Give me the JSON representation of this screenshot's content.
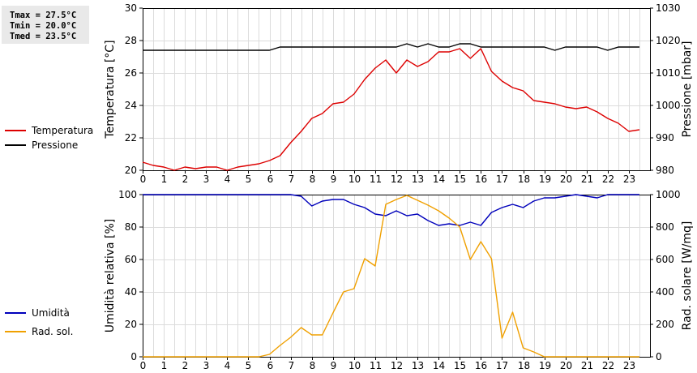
{
  "stats": {
    "tmax": "Tmax = 27.5°C",
    "tmin": "Tmin = 20.0°C",
    "tmed": "Tmed = 23.5°C"
  },
  "legend_top": [
    {
      "label": "Temperatura",
      "color": "#dd0000"
    },
    {
      "label": "Pressione",
      "color": "#000000"
    }
  ],
  "legend_bottom": [
    {
      "label": "Umidità",
      "color": "#0000bb"
    },
    {
      "label": "Rad. sol.",
      "color": "#f0a000"
    }
  ],
  "chart_data": [
    {
      "type": "line",
      "x_ticks": [
        "0",
        "1",
        "2",
        "3",
        "4",
        "5",
        "6",
        "7",
        "8",
        "9",
        "10",
        "11",
        "12",
        "13",
        "14",
        "15",
        "16",
        "17",
        "18",
        "19",
        "20",
        "21",
        "22",
        "23"
      ],
      "xlim": [
        0,
        24
      ],
      "grid": true,
      "y_left": {
        "label": "Temperatura [°C]",
        "ylim": [
          20,
          30
        ],
        "ticks": [
          "20",
          "22",
          "24",
          "26",
          "28",
          "30"
        ]
      },
      "y_right": {
        "label": "Pressione [mbar]",
        "ylim": [
          980,
          1030
        ],
        "ticks": [
          "980",
          "990",
          "1000",
          "1010",
          "1020",
          "1030"
        ]
      },
      "series": [
        {
          "name": "Temperatura",
          "axis": "left",
          "color": "#dd0000",
          "x": [
            0,
            0.5,
            1,
            1.5,
            2,
            2.5,
            3,
            3.5,
            4,
            4.5,
            5,
            5.5,
            6,
            6.5,
            7,
            7.5,
            8,
            8.5,
            9,
            9.5,
            10,
            10.5,
            11,
            11.5,
            12,
            12.5,
            13,
            13.5,
            14,
            14.5,
            15,
            15.5,
            16,
            16.5,
            17,
            17.5,
            18,
            18.5,
            19,
            19.5,
            20,
            20.5,
            21,
            21.5,
            22,
            22.5,
            23,
            23.5
          ],
          "y": [
            20.5,
            20.3,
            20.2,
            20.0,
            20.2,
            20.1,
            20.2,
            20.2,
            20.0,
            20.2,
            20.3,
            20.4,
            20.6,
            20.9,
            21.7,
            22.4,
            23.2,
            23.5,
            24.1,
            24.2,
            24.7,
            25.6,
            26.3,
            26.8,
            26.0,
            26.8,
            26.4,
            26.7,
            27.3,
            27.3,
            27.5,
            26.9,
            27.5,
            26.1,
            25.5,
            25.1,
            24.9,
            24.3,
            24.2,
            24.1,
            23.9,
            23.8,
            23.9,
            23.6,
            23.2,
            22.9,
            22.4,
            22.5
          ]
        },
        {
          "name": "Pressione",
          "axis": "right",
          "color": "#000000",
          "x": [
            0,
            6,
            6.5,
            12,
            12.5,
            13,
            13.5,
            14,
            14.5,
            15,
            15.5,
            16,
            16.5,
            19,
            19.5,
            20,
            20.5,
            21,
            21.5,
            22,
            22.5,
            23,
            23.5
          ],
          "y": [
            1017,
            1017,
            1018,
            1018,
            1019,
            1018,
            1019,
            1018,
            1018,
            1019,
            1019,
            1018,
            1018,
            1018,
            1017,
            1018,
            1018,
            1018,
            1018,
            1017,
            1018,
            1018,
            1018
          ]
        }
      ]
    },
    {
      "type": "line",
      "x_ticks": [
        "0",
        "1",
        "2",
        "3",
        "4",
        "5",
        "6",
        "7",
        "8",
        "9",
        "10",
        "11",
        "12",
        "13",
        "14",
        "15",
        "16",
        "17",
        "18",
        "19",
        "20",
        "21",
        "22",
        "23"
      ],
      "xlim": [
        0,
        24
      ],
      "grid": true,
      "y_left": {
        "label": "Umidità relativa [%]",
        "ylim": [
          0,
          100
        ],
        "ticks": [
          "0",
          "20",
          "40",
          "60",
          "80",
          "100"
        ]
      },
      "y_right": {
        "label": "Rad. solare [W/mq]",
        "ylim": [
          0,
          1000
        ],
        "ticks": [
          "0",
          "200",
          "400",
          "600",
          "800",
          "1000"
        ]
      },
      "series": [
        {
          "name": "Umidità",
          "axis": "left",
          "color": "#0000bb",
          "x": [
            0,
            7,
            7.5,
            8,
            8.5,
            9,
            9.5,
            10,
            10.5,
            11,
            11.5,
            12,
            12.5,
            13,
            13.5,
            14,
            14.5,
            15,
            15.5,
            16,
            16.5,
            17,
            17.5,
            18,
            18.5,
            19,
            19.5,
            20,
            20.5,
            21,
            21.5,
            22,
            22.5,
            23,
            23.5
          ],
          "y": [
            100,
            100,
            99,
            93,
            96,
            97,
            97,
            94,
            92,
            88,
            87,
            90,
            87,
            88,
            84,
            81,
            82,
            81,
            83,
            81,
            89,
            92,
            94,
            92,
            96,
            98,
            98,
            99,
            100,
            99,
            98,
            100,
            100,
            100,
            100
          ]
        },
        {
          "name": "Rad. sol.",
          "axis": "right",
          "color": "#f0a000",
          "x": [
            0,
            5.5,
            6,
            6.5,
            7,
            7.5,
            8,
            8.5,
            9,
            9.5,
            10,
            10.5,
            11,
            11.5,
            12,
            12.5,
            13,
            13.5,
            14,
            14.5,
            15,
            15.5,
            16,
            16.5,
            17,
            17.5,
            18,
            18.5,
            19,
            19.5,
            20,
            21,
            22,
            23,
            23.5
          ],
          "y": [
            0,
            0,
            15,
            70,
            120,
            180,
            135,
            135,
            270,
            400,
            420,
            605,
            560,
            940,
            970,
            995,
            965,
            935,
            900,
            855,
            800,
            600,
            710,
            605,
            115,
            275,
            55,
            30,
            0,
            0,
            0,
            0,
            0,
            0,
            0
          ]
        }
      ]
    }
  ]
}
